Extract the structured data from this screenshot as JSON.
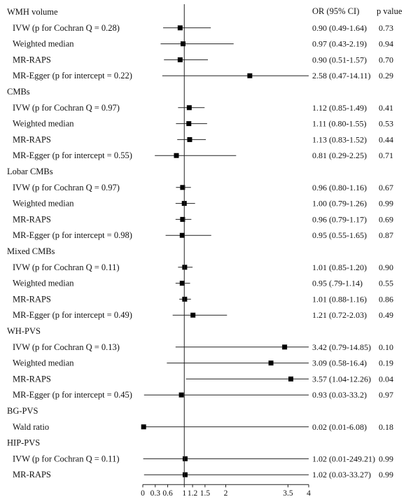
{
  "chart_data": {
    "type": "forest",
    "columns": {
      "or_ci": "OR (95% CI)",
      "p_value": "p value"
    },
    "null_line": 1,
    "xlim": [
      0,
      4
    ],
    "x_ticks": [
      0,
      0.3,
      0.6,
      1,
      1.2,
      1.5,
      2,
      3.5,
      4
    ],
    "groups": [
      {
        "name": "WMH volume",
        "rows": [
          {
            "label": "IVW (p for Cochran Q = 0.28)",
            "or": 0.9,
            "lo": 0.49,
            "hi": 1.64,
            "ci_text": "0.90 (0.49-1.64)",
            "p": "0.73"
          },
          {
            "label": "Weighted median",
            "or": 0.97,
            "lo": 0.43,
            "hi": 2.19,
            "ci_text": "0.97 (0.43-2.19)",
            "p": "0.94"
          },
          {
            "label": "MR-RAPS",
            "or": 0.9,
            "lo": 0.51,
            "hi": 1.57,
            "ci_text": "0.90 (0.51-1.57)",
            "p": "0.70"
          },
          {
            "label": "MR-Egger (p for intercept = 0.22)",
            "or": 2.58,
            "lo": 0.47,
            "hi": 14.11,
            "ci_text": "2.58 (0.47-14.11)",
            "p": "0.29"
          }
        ]
      },
      {
        "name": "CMBs",
        "rows": [
          {
            "label": "IVW (p for Cochran Q = 0.97)",
            "or": 1.12,
            "lo": 0.85,
            "hi": 1.49,
            "ci_text": "1.12 (0.85-1.49)",
            "p": "0.41"
          },
          {
            "label": "Weighted median",
            "or": 1.11,
            "lo": 0.8,
            "hi": 1.55,
            "ci_text": "1.11 (0.80-1.55)",
            "p": "0.53"
          },
          {
            "label": "MR-RAPS",
            "or": 1.13,
            "lo": 0.83,
            "hi": 1.52,
            "ci_text": "1.13 (0.83-1.52)",
            "p": "0.44"
          },
          {
            "label": "MR-Egger (p for intercept = 0.55)",
            "or": 0.81,
            "lo": 0.29,
            "hi": 2.25,
            "ci_text": "0.81 (0.29-2.25)",
            "p": "0.71"
          }
        ]
      },
      {
        "name": "Lobar CMBs",
        "rows": [
          {
            "label": "IVW (p for Cochran Q = 0.97)",
            "or": 0.96,
            "lo": 0.8,
            "hi": 1.16,
            "ci_text": "0.96 (0.80-1.16)",
            "p": "0.67"
          },
          {
            "label": "Weighted median",
            "or": 1.0,
            "lo": 0.79,
            "hi": 1.26,
            "ci_text": "1.00 (0.79-1.26)",
            "p": "0.99"
          },
          {
            "label": "MR-RAPS",
            "or": 0.96,
            "lo": 0.79,
            "hi": 1.17,
            "ci_text": "0.96 (0.79-1.17)",
            "p": "0.69"
          },
          {
            "label": "MR-Egger (p for intercept = 0.98)",
            "or": 0.95,
            "lo": 0.55,
            "hi": 1.65,
            "ci_text": "0.95 (0.55-1.65)",
            "p": "0.87"
          }
        ]
      },
      {
        "name": "Mixed CMBs",
        "rows": [
          {
            "label": "IVW (p for Cochran Q = 0.11)",
            "or": 1.01,
            "lo": 0.85,
            "hi": 1.2,
            "ci_text": "1.01 (0.85-1.20)",
            "p": "0.90"
          },
          {
            "label": "Weighted median",
            "or": 0.95,
            "lo": 0.79,
            "hi": 1.14,
            "ci_text": "0.95 (.79-1.14)",
            "p": "0.55"
          },
          {
            "label": "MR-RAPS",
            "or": 1.01,
            "lo": 0.88,
            "hi": 1.16,
            "ci_text": "1.01 (0.88-1.16)",
            "p": "0.86"
          },
          {
            "label": "MR-Egger (p for intercept = 0.49)",
            "or": 1.21,
            "lo": 0.72,
            "hi": 2.03,
            "ci_text": "1.21 (0.72-2.03)",
            "p": "0.49"
          }
        ]
      },
      {
        "name": "WH-PVS",
        "rows": [
          {
            "label": "IVW (p for Cochran Q = 0.13)",
            "or": 3.42,
            "lo": 0.79,
            "hi": 14.85,
            "ci_text": "3.42 (0.79-14.85)",
            "p": "0.10"
          },
          {
            "label": "Weighted median",
            "or": 3.09,
            "lo": 0.58,
            "hi": 16.4,
            "ci_text": "3.09 (0.58-16.4)",
            "p": "0.19"
          },
          {
            "label": "MR-RAPS",
            "or": 3.57,
            "lo": 1.04,
            "hi": 12.26,
            "ci_text": "3.57 (1.04-12.26)",
            "p": "0.04"
          },
          {
            "label": "MR-Egger (p for intercept = 0.45)",
            "or": 0.93,
            "lo": 0.03,
            "hi": 33.2,
            "ci_text": "0.93 (0.03-33.2)",
            "p": "0.97"
          }
        ]
      },
      {
        "name": "BG-PVS",
        "rows": [
          {
            "label": "Wald ratio",
            "or": 0.02,
            "lo": 0.01,
            "hi": 6.08,
            "ci_text": "0.02 (0.01-6.08)",
            "p": "0.18"
          }
        ]
      },
      {
        "name": "HIP-PVS",
        "rows": [
          {
            "label": "IVW (p for Cochran Q = 0.11)",
            "or": 1.02,
            "lo": 0.01,
            "hi": 249.21,
            "ci_text": "1.02 (0.01-249.21)",
            "p": "0.99"
          },
          {
            "label": "MR-RAPS",
            "or": 1.02,
            "lo": 0.03,
            "hi": 33.27,
            "ci_text": "1.02 (0.03-33.27)",
            "p": "0.99"
          }
        ]
      }
    ]
  }
}
